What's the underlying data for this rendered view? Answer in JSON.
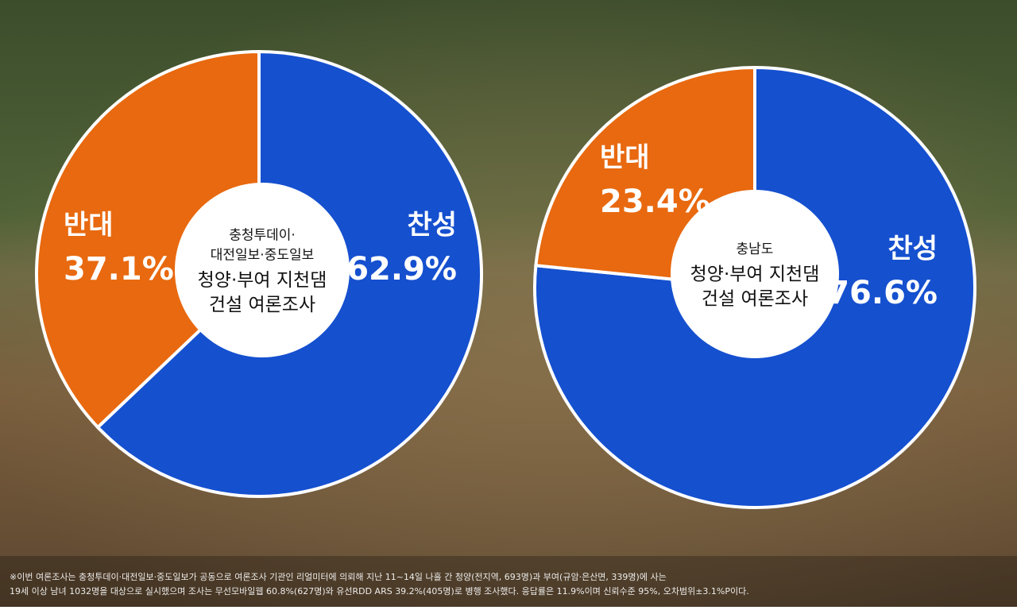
{
  "chart_data": [
    {
      "type": "pie",
      "subtitle_lines": [
        "충청투데이·",
        "대전일보·중도일보"
      ],
      "title_lines": [
        "청양·부여 지천댐",
        "건설 여론조사"
      ],
      "categories": [
        "찬성",
        "반대"
      ],
      "values": [
        62.9,
        37.1
      ],
      "value_labels": [
        "62.9%",
        "37.1%"
      ],
      "colors": [
        "#1550cf",
        "#e8690f"
      ]
    },
    {
      "type": "pie",
      "subtitle_lines": [
        "충남도"
      ],
      "title_lines": [
        "청양·부여 지천댐",
        "건설 여론조사"
      ],
      "categories": [
        "찬성",
        "반대"
      ],
      "values": [
        76.6,
        23.4
      ],
      "value_labels": [
        "76.6%",
        "23.4%"
      ],
      "colors": [
        "#1550cf",
        "#e8690f"
      ]
    }
  ],
  "footnote": [
    "※이번 여론조사는 충청투데이·대전일보·중도일보가 공동으로 여론조사 기관인 리얼미터에 의뢰해 지난 11~14일 나흘 간 청양(전지역, 693명)과 부여(규암·은산면, 339명)에 사는",
    "19세 이상 남녀 1032명을 대상으로 실시했으며 조사는 무선모바일웹 60.8%(627명)와 유선RDD ARS 39.2%(405명)로 병행 조사했다. 응답률은 11.9%이며 신뢰수준 95%, 오차범위±3.1%P이다."
  ]
}
